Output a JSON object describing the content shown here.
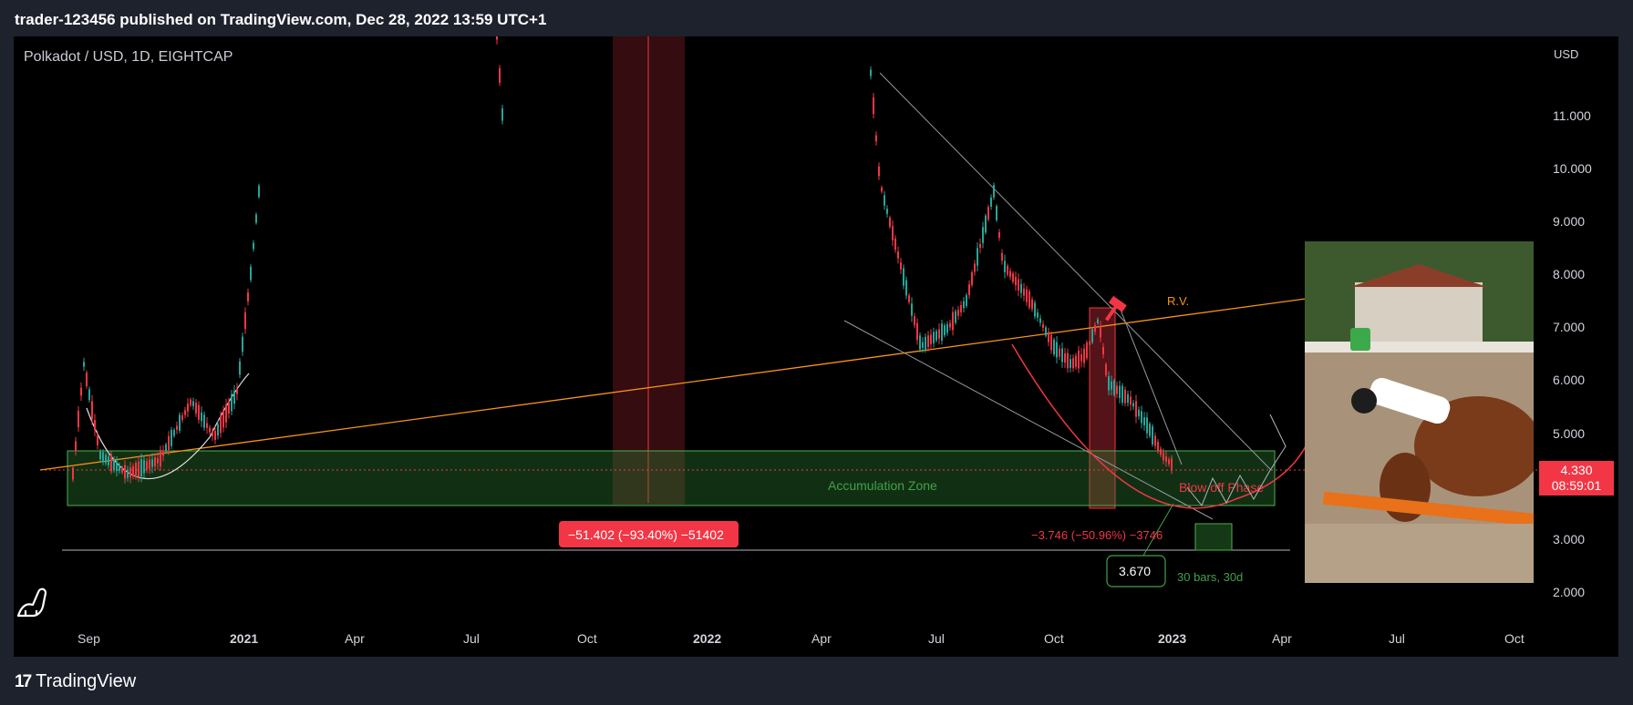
{
  "header": {
    "title": "trader-123456 published on TradingView.com, Dec 28, 2022 13:59 UTC+1"
  },
  "symbol": {
    "label": "Polkadot / USD, 1D, EIGHTCAP"
  },
  "footer": {
    "brand": "TradingView",
    "brand_icon": "tradingview-logo-icon"
  },
  "colors": {
    "background": "#000000",
    "frame": "#1e222d",
    "trendline": "#f7931a",
    "zone": "#2e7d32",
    "bear": "#f23645",
    "bull": "#26a69a",
    "wedge": "#9598a1"
  },
  "chart_data": {
    "type": "candlestick",
    "currency_label": "USD",
    "y_ticks": [
      "11.000",
      "10.000",
      "9.000",
      "8.000",
      "7.000",
      "6.000",
      "5.000",
      "3.000",
      "2.000"
    ],
    "x_ticks": [
      "Sep",
      "2021",
      "Apr",
      "Jul",
      "Oct",
      "2022",
      "Apr",
      "Jul",
      "Oct",
      "2023",
      "Apr",
      "Jul",
      "Oct"
    ],
    "current_price": {
      "value": "4.330",
      "countdown": "08:59:01"
    },
    "annotations": {
      "accumulation_zone": "Accumulation Zone",
      "rv_label": "R.V.",
      "blow_off": "Blow off Phase",
      "measure_big": "−51.402 (−93.40%) −51402",
      "measure_small": "−3.746 (−50.96%) −3746",
      "target_price": "3.670",
      "bars_label": "30 bars, 30d"
    }
  }
}
